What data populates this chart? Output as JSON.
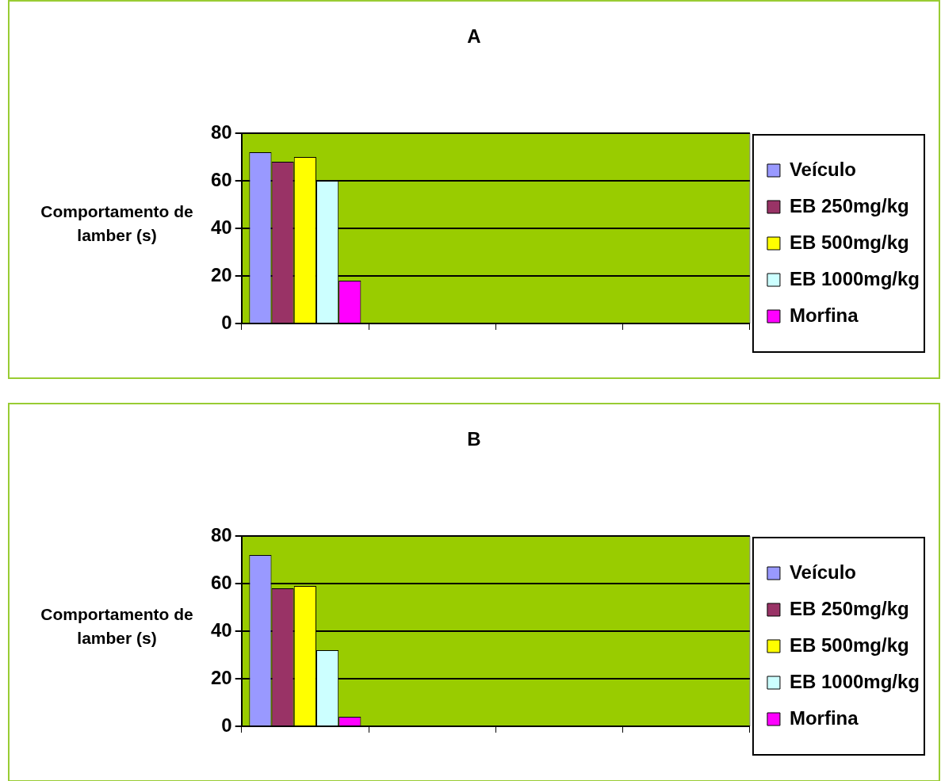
{
  "chart_data": [
    {
      "type": "bar",
      "title": "A",
      "ylabel": "Comportamento de lamber (s)",
      "categories": [
        null,
        null,
        null,
        null
      ],
      "series": [
        {
          "name": "Veículo",
          "color": "#9999ff",
          "values": [
            72,
            null,
            null,
            null
          ]
        },
        {
          "name": "EB 250mg/kg",
          "color": "#993366",
          "values": [
            68,
            null,
            null,
            null
          ]
        },
        {
          "name": "EB 500mg/kg",
          "color": "#ffff00",
          "values": [
            70,
            null,
            null,
            null
          ]
        },
        {
          "name": "EB 1000mg/kg",
          "color": "#ccffff",
          "values": [
            60,
            null,
            null,
            null
          ]
        },
        {
          "name": "Morfina",
          "color": "#ff00ff",
          "values": [
            18,
            null,
            null,
            null
          ]
        }
      ],
      "ylim": [
        0,
        80
      ],
      "yticks": [
        0,
        20,
        40,
        60,
        80
      ],
      "grid": "y",
      "legend": "right"
    },
    {
      "type": "bar",
      "title": "B",
      "ylabel": "Comportamento de lamber (s)",
      "categories": [
        null,
        null,
        null,
        null
      ],
      "series": [
        {
          "name": "Veículo",
          "color": "#9999ff",
          "values": [
            72,
            null,
            null,
            null
          ]
        },
        {
          "name": "EB 250mg/kg",
          "color": "#993366",
          "values": [
            58,
            null,
            null,
            null
          ]
        },
        {
          "name": "EB 500mg/kg",
          "color": "#ffff00",
          "values": [
            59,
            null,
            null,
            null
          ]
        },
        {
          "name": "EB 1000mg/kg",
          "color": "#ccffff",
          "values": [
            32,
            null,
            null,
            null
          ]
        },
        {
          "name": "Morfina",
          "color": "#ff00ff",
          "values": [
            4,
            null,
            null,
            null
          ]
        }
      ],
      "ylim": [
        0,
        80
      ],
      "yticks": [
        0,
        20,
        40,
        60,
        80
      ],
      "grid": "y",
      "legend": "right"
    }
  ]
}
